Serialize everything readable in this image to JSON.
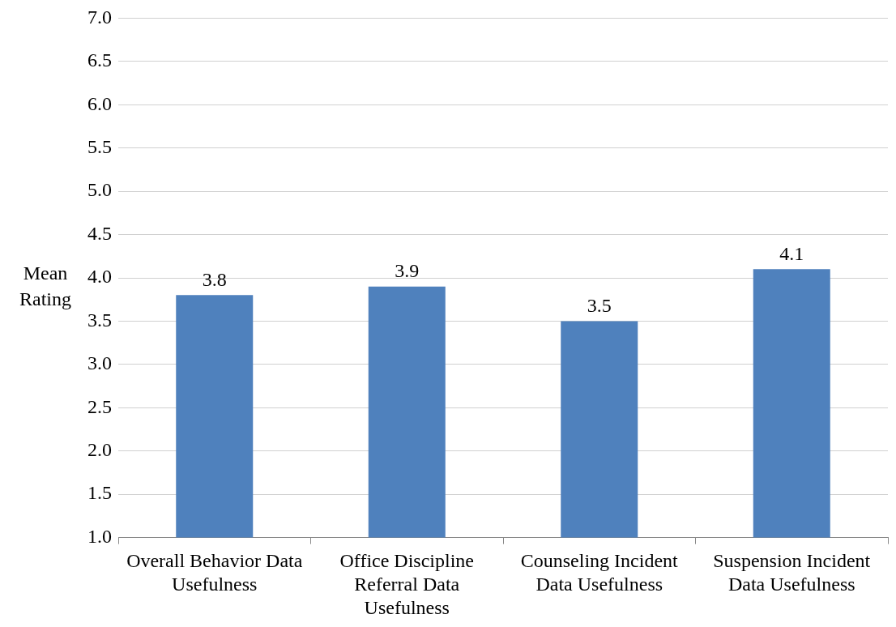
{
  "chart_data": {
    "type": "bar",
    "ylabel": "Mean Rating",
    "categories": [
      "Overall Behavior Data Usefulness",
      "Office Discipline Referral Data Usefulness",
      "Counseling Incident Data Usefulness",
      "Suspension Incident Data Usefulness"
    ],
    "values": [
      3.8,
      3.9,
      3.5,
      4.1
    ],
    "color": "#4f81bd",
    "ylim": [
      1.0,
      7.0
    ],
    "yticks": [
      {
        "value": 1,
        "label": "1.0"
      },
      {
        "value": 1.5,
        "label": "1.5"
      },
      {
        "value": 2,
        "label": "2.0"
      },
      {
        "value": 2.5,
        "label": "2.5"
      },
      {
        "value": 3,
        "label": "3.0"
      },
      {
        "value": 3.5,
        "label": "3.5"
      },
      {
        "value": 4,
        "label": "4.0"
      },
      {
        "value": 4.5,
        "label": "4.5"
      },
      {
        "value": 5,
        "label": "5.0"
      },
      {
        "value": 5.5,
        "label": "5.5"
      },
      {
        "value": 6,
        "label": "6.0"
      },
      {
        "value": 6.5,
        "label": "6.5"
      },
      {
        "value": 7,
        "label": "7.0"
      }
    ],
    "grid": "y",
    "data_labels": true,
    "legend": false
  }
}
